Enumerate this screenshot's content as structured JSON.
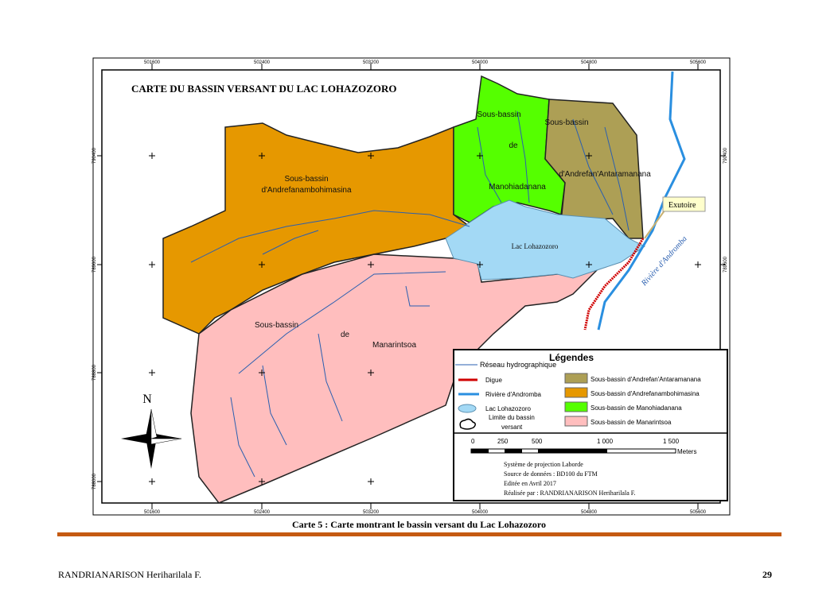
{
  "map": {
    "title": "CARTE DU BASSIN VERSANT DU LAC LOHAZOZORO",
    "x_ticks": [
      "501600",
      "502400",
      "503200",
      "504000",
      "504800",
      "505600"
    ],
    "y_ticks": [
      "790400",
      "789600",
      "788800",
      "788000"
    ],
    "labels": {
      "andrefanambohimasina": [
        "Sous-bassin",
        "d'Andrefanambohimasina"
      ],
      "manohiadanana": [
        "Sous-bassin",
        "de",
        "Manohiadanana"
      ],
      "antaramanana": [
        "Sous-bassin",
        "d'Andrefan'Antaramanana"
      ],
      "lac": "Lac Lohazozoro",
      "manarintsoa": [
        "Sous-bassin",
        "de",
        "Manarintsoa"
      ],
      "exutoire": "Exutoire",
      "riviere": "Rivière d'Andromba"
    },
    "north": "N",
    "colors": {
      "andrefanambohimasina": "#e69800",
      "manohiadanana": "#55ff00",
      "antaramanana": "#ad9f55",
      "manarintsoa": "#ffbebe",
      "lac": "#a3d9f5",
      "riviere": "#2a8fe0",
      "digue": "#d00000",
      "reseau": "#2a5fb0"
    },
    "legend": {
      "title": "Légendes",
      "reseau": "Réseau hydrographique",
      "digue": "Digue",
      "riviere": "Rivière d'Andromba",
      "lac": "Lac Lohazozoro",
      "limite": [
        "Limite du bassin",
        "versant"
      ],
      "sb1": "Sous-bassin d'Andrefan'Antaramanana",
      "sb2": "Sous-bassin d'Andrefanambohimasina",
      "sb3": "Sous-bassin de Manohiadanana",
      "sb4": "Sous-bassin de Manarintsoa",
      "scale": [
        "0",
        "250",
        "500",
        "1 000",
        "1 500"
      ],
      "scale_unit": "Meters",
      "info": [
        "Système de projection Laborde",
        "Source de données : BD100 du FTM",
        "Editée en Avril 2017",
        "Réalisée par : RANDRIANARISON Heriharilala F."
      ]
    }
  },
  "caption": "Carte 5 : Carte montrant le bassin versant du Lac Lohazozoro",
  "footer": {
    "author": "RANDRIANARISON Heriharilala F.",
    "page": "29"
  }
}
